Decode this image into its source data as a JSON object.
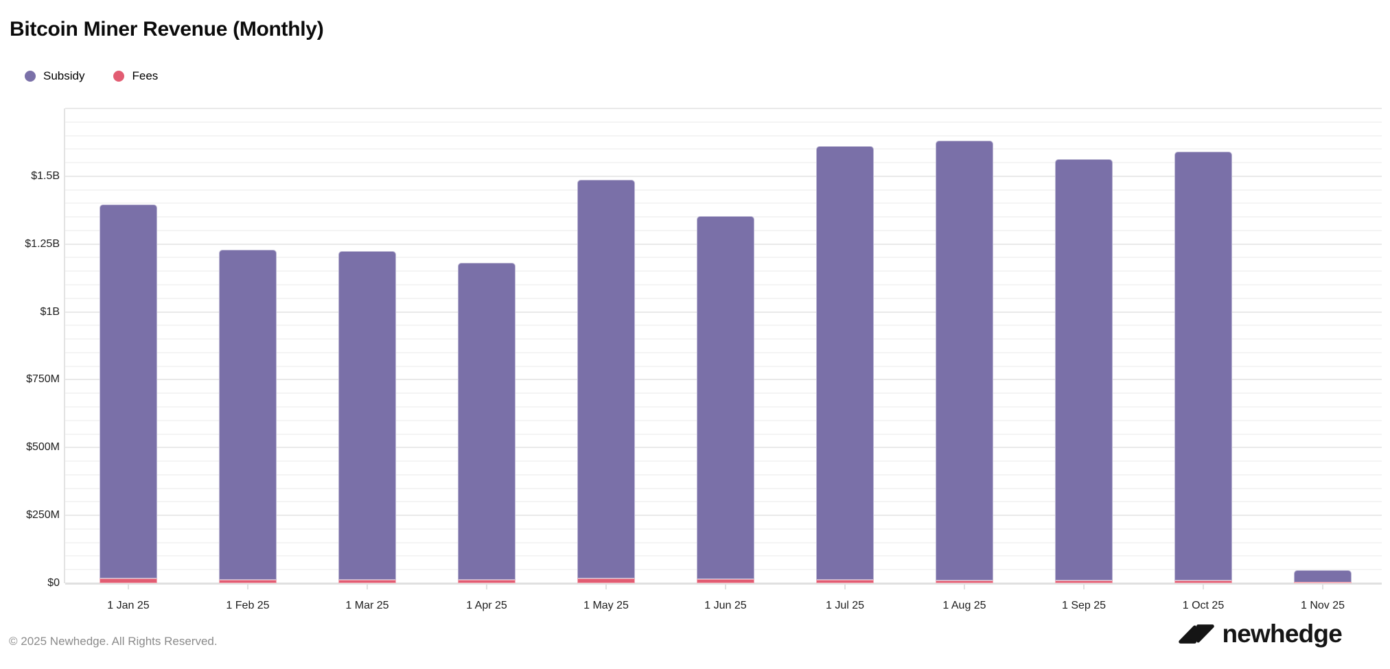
{
  "title": "Bitcoin Miner Revenue (Monthly)",
  "legend": {
    "items": [
      {
        "label": "Subsidy",
        "color": "#7A70A8"
      },
      {
        "label": "Fees",
        "color": "#E25C72"
      }
    ]
  },
  "chart_data": {
    "type": "bar",
    "stacked": true,
    "title": "Bitcoin Miner Revenue (Monthly)",
    "xlabel": "",
    "ylabel": "",
    "ymax_musd": 1750,
    "grid_step_musd": 50,
    "major_step_musd": 250,
    "legend_position": "top-left",
    "categories": [
      "1 Jan 25",
      "1 Feb 25",
      "1 Mar 25",
      "1 Apr 25",
      "1 May 25",
      "1 Jun 25",
      "1 Jul 25",
      "1 Aug 25",
      "1 Sep 25",
      "1 Oct 25",
      "1 Nov 25"
    ],
    "series": [
      {
        "name": "Fees",
        "color": "#E25C72",
        "values_musd": [
          17,
          13,
          13,
          13,
          17,
          15,
          13,
          11,
          11,
          9,
          1
        ]
      },
      {
        "name": "Subsidy",
        "color": "#7A70A8",
        "values_musd": [
          1380,
          1217,
          1210,
          1169,
          1469,
          1339,
          1599,
          1620,
          1552,
          1583,
          48
        ]
      }
    ],
    "totals_musd": [
      1397,
      1230,
      1223,
      1182,
      1486,
      1354,
      1612,
      1631,
      1563,
      1592,
      49
    ],
    "y_ticks": [
      {
        "musd": 0,
        "label": "$0"
      },
      {
        "musd": 250,
        "label": "$250M"
      },
      {
        "musd": 500,
        "label": "$500M"
      },
      {
        "musd": 750,
        "label": "$750M"
      },
      {
        "musd": 1000,
        "label": "$1B"
      },
      {
        "musd": 1250,
        "label": "$1.25B"
      },
      {
        "musd": 1500,
        "label": "$1.5B"
      }
    ]
  },
  "footer": {
    "copyright": "© 2025 Newhedge. All Rights Reserved.",
    "brand": "newhedge"
  }
}
